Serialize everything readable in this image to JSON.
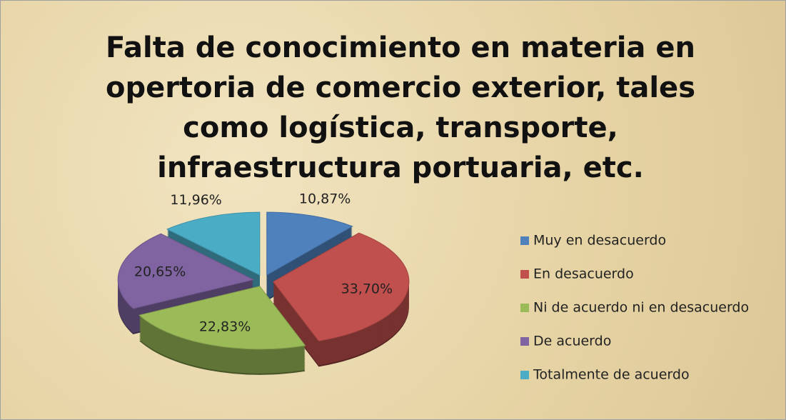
{
  "chart_data": {
    "type": "pie",
    "title": "Falta de conocimiento en materia en opertoria de comercio exterior, tales como logística, transporte, infraestructura portuaria, etc.",
    "categories": [
      "Muy en desacuerdo",
      "En desacuerdo",
      "Ni de acuerdo ni en desacuerdo",
      "De acuerdo",
      "Totalmente de acuerdo"
    ],
    "values": [
      10.87,
      33.7,
      22.83,
      20.65,
      11.96
    ],
    "value_labels": [
      "10,87%",
      "33,70%",
      "22,83%",
      "20,65%",
      "11,96%"
    ],
    "colors": [
      "#4f81bd",
      "#c0504d",
      "#9bbb59",
      "#8064a2",
      "#4bacc6"
    ],
    "legend": "right"
  }
}
